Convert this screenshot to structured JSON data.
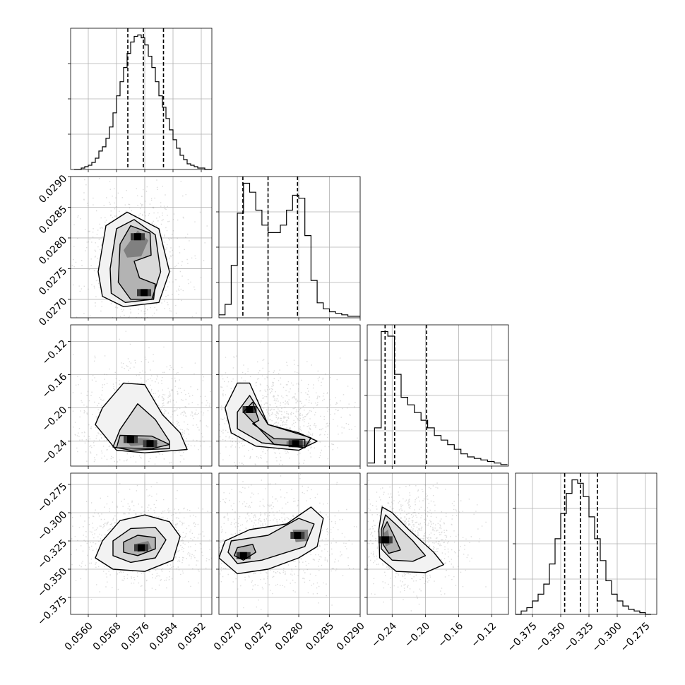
{
  "chart_data": {
    "type": "corner",
    "grid": true,
    "params": [
      {
        "range": [
          0.0555,
          0.0595
        ],
        "ticks": [
          "0.0560",
          "0.0568",
          "0.0576",
          "0.0584",
          "0.0592"
        ],
        "quantiles": [
          0.05712,
          0.05756,
          0.05813
        ],
        "hist_x": [
          0.05565,
          0.05575,
          0.05585,
          0.05595,
          0.05605,
          0.05615,
          0.05625,
          0.05635,
          0.05645,
          0.05655,
          0.05665,
          0.05675,
          0.05685,
          0.05695,
          0.05705,
          0.05715,
          0.05725,
          0.05735,
          0.05745,
          0.05755,
          0.05765,
          0.05775,
          0.05785,
          0.05795,
          0.05805,
          0.05815,
          0.05825,
          0.05835,
          0.05845,
          0.05855,
          0.05865,
          0.05875,
          0.05885,
          0.05895,
          0.05905,
          0.05915,
          0.05925,
          0.05935,
          0.05945
        ],
        "hist_y": [
          0,
          0,
          1,
          2,
          3,
          5,
          8,
          13,
          16,
          22,
          30,
          40,
          52,
          62,
          72,
          82,
          90,
          94,
          95,
          93,
          88,
          80,
          72,
          62,
          52,
          44,
          36,
          28,
          21,
          15,
          10,
          7,
          4,
          3,
          2,
          1,
          1,
          0,
          0
        ]
      },
      {
        "range": [
          0.0267,
          0.029
        ],
        "ticks": [
          "0.0270",
          "0.0275",
          "0.0280",
          "0.0285",
          "0.0290"
        ],
        "quantiles": [
          0.02709,
          0.0275,
          0.02798
        ],
        "hist_x": [
          0.02675,
          0.02685,
          0.02695,
          0.02705,
          0.02715,
          0.02725,
          0.02735,
          0.02745,
          0.02755,
          0.02765,
          0.02775,
          0.02785,
          0.02795,
          0.02805,
          0.02815,
          0.02825,
          0.02835,
          0.02845,
          0.02855,
          0.02865,
          0.02875,
          0.02885,
          0.02895
        ],
        "hist_y": [
          2,
          9,
          35,
          70,
          90,
          84,
          72,
          62,
          57,
          57,
          62,
          72,
          82,
          80,
          55,
          25,
          10,
          6,
          4,
          3,
          2,
          1,
          1
        ]
      },
      {
        "range": [
          -0.27,
          -0.1
        ],
        "ticks": [
          "−0.24",
          "−0.20",
          "−0.16",
          "−0.12"
        ],
        "quantiles": [
          -0.2485,
          -0.237,
          -0.1985
        ],
        "hist_x": [
          -0.2652,
          -0.2572,
          -0.2492,
          -0.2412,
          -0.2332,
          -0.2252,
          -0.2172,
          -0.2092,
          -0.2012,
          -0.1932,
          -0.1852,
          -0.1772,
          -0.1692,
          -0.1612,
          -0.1532,
          -0.1452,
          -0.1372,
          -0.1292,
          -0.1212,
          -0.1132,
          -0.1052
        ],
        "hist_y": [
          2,
          25,
          88,
          85,
          60,
          45,
          40,
          35,
          30,
          25,
          20,
          17,
          14,
          11,
          8,
          6,
          5,
          4,
          3,
          2,
          1
        ]
      },
      {
        "range": [
          -0.39,
          -0.265
        ],
        "ticks": [
          "−0.375",
          "−0.350",
          "−0.325",
          "−0.300",
          "−0.275"
        ],
        "quantiles": [
          -0.3465,
          -0.3325,
          -0.3175
        ],
        "hist_x": [
          -0.3875,
          -0.3825,
          -0.3775,
          -0.3725,
          -0.3675,
          -0.3625,
          -0.3575,
          -0.3525,
          -0.3475,
          -0.3425,
          -0.3375,
          -0.3325,
          -0.3275,
          -0.3225,
          -0.3175,
          -0.3125,
          -0.3075,
          -0.3025,
          -0.2975,
          -0.2925,
          -0.2875,
          -0.2825,
          -0.2775,
          -0.2725
        ],
        "hist_y": [
          0,
          2,
          4,
          8,
          12,
          18,
          30,
          45,
          60,
          72,
          80,
          78,
          70,
          58,
          45,
          32,
          20,
          12,
          8,
          5,
          3,
          2,
          1,
          0
        ]
      }
    ],
    "pairs": [
      {
        "row": 1,
        "col": 0,
        "modes": [
          [
            0.0574,
            0.02802
          ],
          [
            0.05758,
            0.02711
          ]
        ],
        "outer": [
          [
            0.05628,
            0.02745
          ],
          [
            0.0565,
            0.0282
          ],
          [
            0.0571,
            0.02842
          ],
          [
            0.058,
            0.02815
          ],
          [
            0.0583,
            0.02745
          ],
          [
            0.058,
            0.02695
          ],
          [
            0.057,
            0.02688
          ],
          [
            0.0564,
            0.02705
          ]
        ],
        "middle": [
          [
            0.05662,
            0.0275
          ],
          [
            0.0568,
            0.02815
          ],
          [
            0.0573,
            0.0283
          ],
          [
            0.0579,
            0.02805
          ],
          [
            0.05805,
            0.02745
          ],
          [
            0.0578,
            0.027
          ],
          [
            0.05705,
            0.02695
          ],
          [
            0.05665,
            0.0271
          ]
        ],
        "inner": [
          [
            0.0569,
            0.0279
          ],
          [
            0.0572,
            0.0282
          ],
          [
            0.05775,
            0.02808
          ],
          [
            0.05778,
            0.02772
          ],
          [
            0.0573,
            0.02762
          ],
          [
            0.05745,
            0.02735
          ],
          [
            0.0579,
            0.02725
          ],
          [
            0.05785,
            0.027
          ],
          [
            0.0572,
            0.027
          ],
          [
            0.05685,
            0.02728
          ]
        ],
        "core": [
          [
            0.057,
            0.0278
          ],
          [
            0.0574,
            0.02812
          ],
          [
            0.0577,
            0.02796
          ],
          [
            0.0575,
            0.0277
          ],
          [
            0.0571,
            0.02768
          ]
        ]
      },
      {
        "row": 2,
        "col": 0,
        "modes": [
          [
            0.0572,
            -0.238
          ],
          [
            0.05775,
            -0.243
          ]
        ],
        "outer": [
          [
            0.0564,
            -0.2
          ],
          [
            0.057,
            -0.17
          ],
          [
            0.0576,
            -0.172
          ],
          [
            0.0581,
            -0.208
          ],
          [
            0.0586,
            -0.23
          ],
          [
            0.0588,
            -0.25
          ],
          [
            0.0576,
            -0.254
          ],
          [
            0.0568,
            -0.251
          ],
          [
            0.0562,
            -0.22
          ]
        ],
        "middle": [
          [
            0.0569,
            -0.226
          ],
          [
            0.0574,
            -0.195
          ],
          [
            0.0579,
            -0.214
          ],
          [
            0.0583,
            -0.24
          ],
          [
            0.0583,
            -0.249
          ],
          [
            0.0572,
            -0.251
          ],
          [
            0.0567,
            -0.247
          ]
        ],
        "inner": [
          [
            0.0569,
            -0.233
          ],
          [
            0.0578,
            -0.234
          ],
          [
            0.0583,
            -0.244
          ],
          [
            0.0578,
            -0.249
          ],
          [
            0.0568,
            -0.248
          ]
        ],
        "core": [
          [
            0.057,
            -0.235
          ],
          [
            0.0577,
            -0.237
          ],
          [
            0.058,
            -0.243
          ],
          [
            0.0572,
            -0.246
          ]
        ]
      },
      {
        "row": 3,
        "col": 0,
        "modes": [
          [
            0.0575,
            -0.331
          ]
        ],
        "outer": [
          [
            0.0564,
            -0.325
          ],
          [
            0.0569,
            -0.307
          ],
          [
            0.0576,
            -0.302
          ],
          [
            0.0583,
            -0.308
          ],
          [
            0.0586,
            -0.321
          ],
          [
            0.0584,
            -0.342
          ],
          [
            0.0576,
            -0.352
          ],
          [
            0.0567,
            -0.35
          ],
          [
            0.0562,
            -0.34
          ]
        ],
        "middle": [
          [
            0.0567,
            -0.325
          ],
          [
            0.0572,
            -0.314
          ],
          [
            0.0579,
            -0.313
          ],
          [
            0.0582,
            -0.324
          ],
          [
            0.0579,
            -0.34
          ],
          [
            0.0572,
            -0.344
          ],
          [
            0.0567,
            -0.338
          ]
        ],
        "inner": [
          [
            0.057,
            -0.326
          ],
          [
            0.0574,
            -0.32
          ],
          [
            0.0579,
            -0.322
          ],
          [
            0.0579,
            -0.332
          ],
          [
            0.0574,
            -0.338
          ],
          [
            0.057,
            -0.335
          ]
        ],
        "core": [
          [
            0.0573,
            -0.328
          ],
          [
            0.0577,
            -0.325
          ],
          [
            0.0578,
            -0.332
          ],
          [
            0.0574,
            -0.335
          ]
        ]
      },
      {
        "row": 2,
        "col": 1,
        "modes": [
          [
            0.0272,
            -0.202
          ],
          [
            0.02795,
            -0.243
          ]
        ],
        "outer": [
          [
            0.0268,
            -0.2
          ],
          [
            0.027,
            -0.17
          ],
          [
            0.0272,
            -0.17
          ],
          [
            0.0275,
            -0.22
          ],
          [
            0.028,
            -0.23
          ],
          [
            0.0283,
            -0.24
          ],
          [
            0.028,
            -0.251
          ],
          [
            0.0273,
            -0.246
          ],
          [
            0.0269,
            -0.23
          ]
        ],
        "middle": [
          [
            0.027,
            -0.205
          ],
          [
            0.0272,
            -0.185
          ],
          [
            0.0275,
            -0.22
          ],
          [
            0.0282,
            -0.236
          ],
          [
            0.0281,
            -0.248
          ],
          [
            0.0274,
            -0.242
          ],
          [
            0.027,
            -0.225
          ]
        ],
        "inner": [
          [
            0.0271,
            -0.205
          ],
          [
            0.02725,
            -0.193
          ],
          [
            0.02735,
            -0.215
          ],
          [
            0.02725,
            -0.219
          ],
          [
            0.0276,
            -0.237
          ],
          [
            0.0281,
            -0.238
          ],
          [
            0.0281,
            -0.246
          ],
          [
            0.0276,
            -0.244
          ]
        ],
        "core": [
          [
            0.0278,
            -0.24
          ],
          [
            0.0282,
            -0.24
          ],
          [
            0.02815,
            -0.246
          ],
          [
            0.0278,
            -0.245
          ]
        ]
      },
      {
        "row": 3,
        "col": 1,
        "modes": [
          [
            0.0271,
            -0.338
          ],
          [
            0.02798,
            -0.32
          ]
        ],
        "outer": [
          [
            0.0268,
            -0.325
          ],
          [
            0.0272,
            -0.315
          ],
          [
            0.0278,
            -0.31
          ],
          [
            0.0282,
            -0.295
          ],
          [
            0.0284,
            -0.305
          ],
          [
            0.0283,
            -0.33
          ],
          [
            0.028,
            -0.34
          ],
          [
            0.0275,
            -0.35
          ],
          [
            0.027,
            -0.354
          ],
          [
            0.0267,
            -0.34
          ]
        ],
        "middle": [
          [
            0.0269,
            -0.325
          ],
          [
            0.0275,
            -0.32
          ],
          [
            0.028,
            -0.305
          ],
          [
            0.02825,
            -0.31
          ],
          [
            0.0281,
            -0.33
          ],
          [
            0.0274,
            -0.342
          ],
          [
            0.027,
            -0.345
          ],
          [
            0.02685,
            -0.335
          ]
        ],
        "inner": [
          [
            0.027,
            -0.331
          ],
          [
            0.02725,
            -0.328
          ],
          [
            0.0273,
            -0.335
          ],
          [
            0.0271,
            -0.342
          ],
          [
            0.02695,
            -0.338
          ]
        ],
        "core": [
          [
            0.0279,
            -0.315
          ],
          [
            0.02815,
            -0.315
          ],
          [
            0.02815,
            -0.325
          ],
          [
            0.02795,
            -0.326
          ]
        ]
      },
      {
        "row": 3,
        "col": 2,
        "modes": [
          [
            -0.248,
            -0.324
          ]
        ],
        "outer": [
          [
            -0.256,
            -0.315
          ],
          [
            -0.252,
            -0.295
          ],
          [
            -0.24,
            -0.3
          ],
          [
            -0.22,
            -0.315
          ],
          [
            -0.19,
            -0.335
          ],
          [
            -0.178,
            -0.346
          ],
          [
            -0.2,
            -0.353
          ],
          [
            -0.235,
            -0.352
          ],
          [
            -0.255,
            -0.34
          ]
        ],
        "middle": [
          [
            -0.253,
            -0.315
          ],
          [
            -0.248,
            -0.302
          ],
          [
            -0.236,
            -0.31
          ],
          [
            -0.215,
            -0.325
          ],
          [
            -0.2,
            -0.338
          ],
          [
            -0.215,
            -0.343
          ],
          [
            -0.24,
            -0.342
          ],
          [
            -0.253,
            -0.332
          ]
        ],
        "inner": [
          [
            -0.251,
            -0.315
          ],
          [
            -0.246,
            -0.308
          ],
          [
            -0.238,
            -0.32
          ],
          [
            -0.23,
            -0.333
          ],
          [
            -0.244,
            -0.336
          ],
          [
            -0.251,
            -0.328
          ]
        ],
        "core": [
          [
            -0.25,
            -0.318
          ],
          [
            -0.245,
            -0.315
          ],
          [
            -0.242,
            -0.328
          ],
          [
            -0.248,
            -0.33
          ]
        ]
      }
    ],
    "left_ticks": {
      "1": [
        "0.0270",
        "0.0275",
        "0.0280",
        "0.0285",
        "0.0290"
      ],
      "2": [
        "−0.24",
        "−0.20",
        "−0.16",
        "−0.12"
      ],
      "3": [
        "−0.375",
        "−0.350",
        "−0.325",
        "−0.300",
        "−0.275"
      ]
    }
  },
  "colors": {
    "line": "#000000",
    "grid": "#b0b0b0",
    "scatter": "#7f7f7f",
    "density": [
      "#f2f2f2",
      "#d9d9d9",
      "#b3b3b3",
      "#808080",
      "#3c3c3c",
      "#000000"
    ]
  }
}
